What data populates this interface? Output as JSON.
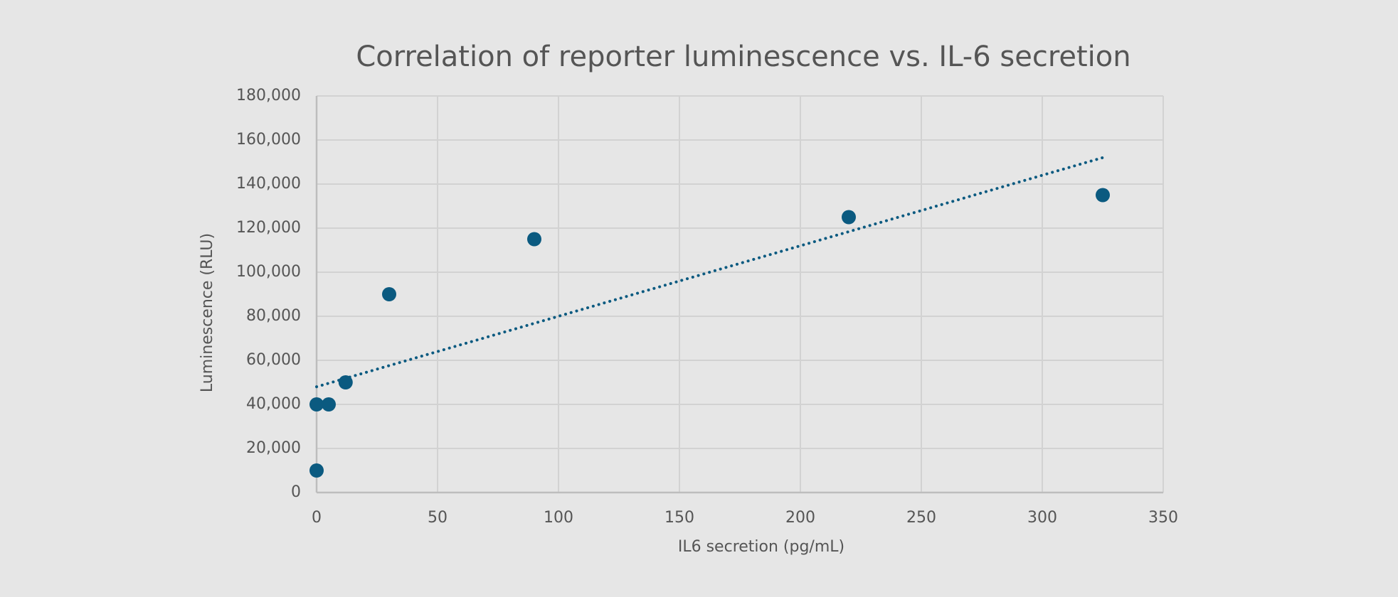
{
  "chart_data": {
    "type": "scatter",
    "title": "Correlation of reporter luminescence vs. IL-6 secretion",
    "x_label": "IL6 secretion (pg/mL)",
    "y_label": "Luminescence (RLU)",
    "series": [
      {
        "color": "#0b5a80",
        "x": [
          0,
          0,
          5,
          12,
          30,
          90,
          220,
          325
        ],
        "values": [
          10000,
          40000,
          40000,
          50000,
          90000,
          115000,
          125000,
          135000
        ]
      }
    ],
    "trendline": {
      "color": "#0b5a80",
      "x": [
        0,
        325
      ],
      "values": [
        48000,
        152000
      ]
    },
    "xlim": [
      0,
      350
    ],
    "xticks": [
      0,
      50,
      100,
      150,
      200,
      250,
      300,
      350
    ],
    "ylim": [
      0,
      180000
    ],
    "yticks": [
      {
        "value": 0,
        "label": "0"
      },
      {
        "value": 20000,
        "label": "20,000"
      },
      {
        "value": 40000,
        "label": "40,000"
      },
      {
        "value": 60000,
        "label": "60,000"
      },
      {
        "value": 80000,
        "label": "80,000"
      },
      {
        "value": 100000,
        "label": "100,000"
      },
      {
        "value": 120000,
        "label": "120,000"
      },
      {
        "value": 140000,
        "label": "140,000"
      },
      {
        "value": 160000,
        "label": "160,000"
      },
      {
        "value": 180000,
        "label": "180,000"
      }
    ],
    "grid": true
  }
}
